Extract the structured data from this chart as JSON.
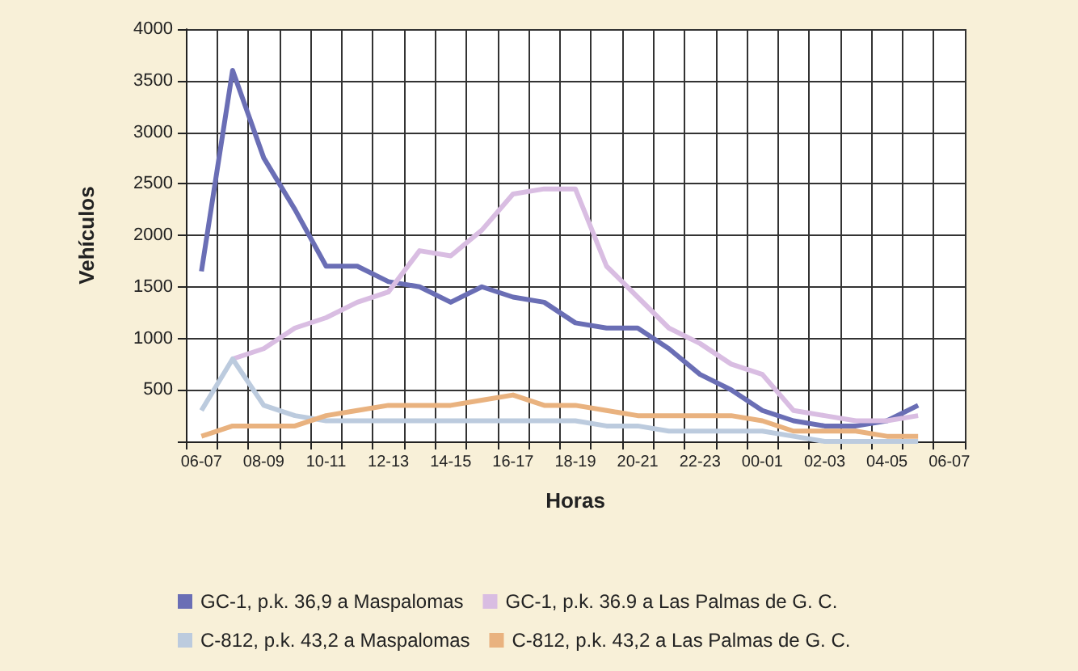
{
  "chart_data": {
    "type": "line",
    "xlabel": "Horas",
    "ylabel": "Vehículos",
    "categories": [
      "06-07",
      null,
      "08-09",
      null,
      "10-11",
      null,
      "12-13",
      null,
      "14-15",
      null,
      "16-17",
      null,
      "18-19",
      null,
      "20-21",
      null,
      "22-23",
      null,
      "00-01",
      null,
      "02-03",
      null,
      "04-05",
      null,
      "06-07"
    ],
    "series": [
      {
        "name": "GC-1, p.k. 36,9 a Maspalomas",
        "color": "#6a6eb5",
        "values": [
          1650,
          3600,
          2750,
          2250,
          1700,
          1700,
          1550,
          1500,
          1350,
          1500,
          1400,
          1350,
          1150,
          1100,
          1100,
          900,
          650,
          500,
          300,
          200,
          150,
          150,
          200,
          350,
          null
        ]
      },
      {
        "name": "GC-1, p.k. 36.9 a Las Palmas de G. C.",
        "color": "#d9bde2",
        "values": [
          null,
          800,
          900,
          1100,
          1200,
          1350,
          1450,
          1850,
          1800,
          2050,
          2400,
          2450,
          2450,
          1700,
          1400,
          1100,
          950,
          750,
          650,
          300,
          250,
          200,
          200,
          250,
          null
        ]
      },
      {
        "name": "C-812, p.k. 43,2 a Maspalomas",
        "color": "#bccbde",
        "values": [
          300,
          800,
          350,
          250,
          200,
          200,
          200,
          200,
          200,
          200,
          200,
          200,
          200,
          150,
          150,
          100,
          100,
          100,
          100,
          50,
          0,
          0,
          0,
          0,
          null
        ]
      },
      {
        "name": "C-812, p.k. 43,2 a Las Palmas de G. C.",
        "color": "#e9b27f",
        "values": [
          50,
          150,
          150,
          150,
          250,
          300,
          350,
          350,
          350,
          400,
          450,
          350,
          350,
          300,
          250,
          250,
          250,
          250,
          200,
          100,
          100,
          100,
          50,
          50,
          null
        ]
      }
    ],
    "ylim": [
      0,
      4000
    ],
    "yticks": [
      {
        "value": 0,
        "label": null
      },
      500,
      1000,
      1500,
      2000,
      2500,
      3000,
      3500,
      4000
    ],
    "grid": true,
    "legend": "bottom"
  }
}
